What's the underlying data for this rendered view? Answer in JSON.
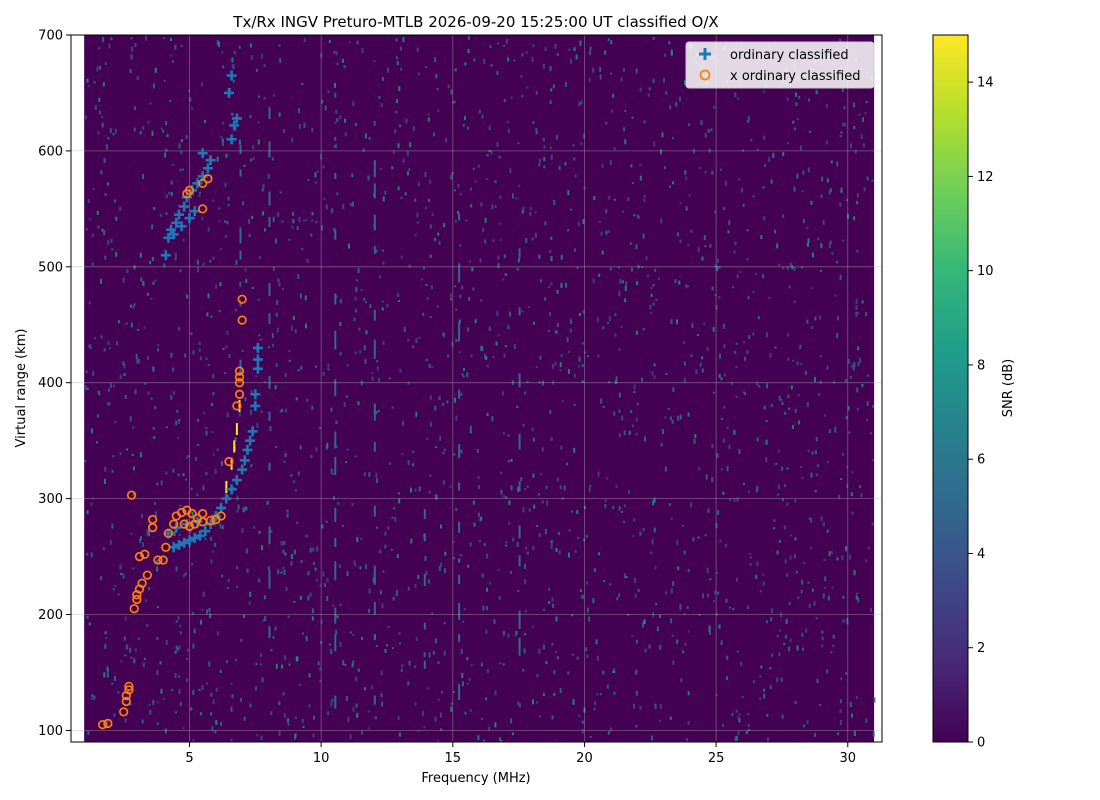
{
  "chart_data": {
    "type": "scatter",
    "title": "Tx/Rx INGV Preturo-MTLB 2026-09-20 15:25:00  UT classified O/X",
    "xlabel": "Frequency (MHz)",
    "ylabel": "Virtual range (km)",
    "xlim": [
      0.5,
      31.3
    ],
    "ylim": [
      90,
      700
    ],
    "x_ticks": [
      5,
      10,
      15,
      20,
      25,
      30
    ],
    "y_ticks": [
      100,
      200,
      300,
      400,
      500,
      600,
      700
    ],
    "grid": true,
    "legend_position": "top-right",
    "heatmap_background": {
      "x_range": [
        1.0,
        31.0
      ],
      "y_range": [
        90,
        700
      ],
      "description_colormap": "viridis",
      "base_value_db": 0
    },
    "colorbar": {
      "label": "SNR (dB)",
      "range": [
        0,
        15
      ],
      "ticks": [
        0,
        2,
        4,
        6,
        8,
        10,
        12,
        14
      ],
      "colors": [
        "#440154",
        "#482878",
        "#3e4989",
        "#31688e",
        "#26828e",
        "#1f9e89",
        "#35b779",
        "#6ece58",
        "#b5de2b",
        "#fde725"
      ]
    },
    "series": [
      {
        "name": "ordinary classified",
        "marker": "plus",
        "color": "#1f77b4",
        "points": [
          [
            4.4,
            258
          ],
          [
            4.6,
            260
          ],
          [
            4.8,
            262
          ],
          [
            5.0,
            264
          ],
          [
            5.2,
            266
          ],
          [
            5.4,
            268
          ],
          [
            5.6,
            272
          ],
          [
            5.8,
            278
          ],
          [
            6.0,
            285
          ],
          [
            6.2,
            292
          ],
          [
            6.4,
            300
          ],
          [
            6.6,
            308
          ],
          [
            6.8,
            316
          ],
          [
            7.0,
            325
          ],
          [
            7.1,
            333
          ],
          [
            7.2,
            342
          ],
          [
            7.3,
            350
          ],
          [
            7.4,
            358
          ],
          [
            7.5,
            380
          ],
          [
            7.5,
            390
          ],
          [
            7.6,
            412
          ],
          [
            7.6,
            420
          ],
          [
            7.6,
            430
          ],
          [
            4.2,
            270
          ],
          [
            4.5,
            275
          ],
          [
            4.9,
            278
          ],
          [
            5.3,
            280
          ],
          [
            4.1,
            510
          ],
          [
            4.2,
            525
          ],
          [
            4.3,
            532
          ],
          [
            4.5,
            538
          ],
          [
            4.6,
            545
          ],
          [
            4.8,
            552
          ],
          [
            4.9,
            560
          ],
          [
            5.1,
            566
          ],
          [
            5.3,
            572
          ],
          [
            5.5,
            578
          ],
          [
            5.7,
            585
          ],
          [
            5.8,
            592
          ],
          [
            4.4,
            528
          ],
          [
            4.7,
            535
          ],
          [
            5.0,
            542
          ],
          [
            5.2,
            548
          ],
          [
            5.5,
            598
          ],
          [
            6.6,
            610
          ],
          [
            6.7,
            622
          ],
          [
            6.8,
            628
          ],
          [
            6.5,
            650
          ],
          [
            6.6,
            665
          ]
        ]
      },
      {
        "name": "x ordinary classified",
        "marker": "circle",
        "color": "#ff7f0e",
        "points": [
          [
            1.7,
            105
          ],
          [
            1.9,
            106
          ],
          [
            2.5,
            116
          ],
          [
            2.6,
            125
          ],
          [
            2.6,
            130
          ],
          [
            2.7,
            135
          ],
          [
            2.7,
            138
          ],
          [
            2.9,
            205
          ],
          [
            3.0,
            213
          ],
          [
            3.0,
            217
          ],
          [
            3.1,
            222
          ],
          [
            3.2,
            227
          ],
          [
            3.4,
            234
          ],
          [
            3.1,
            250
          ],
          [
            3.3,
            252
          ],
          [
            3.8,
            247
          ],
          [
            4.0,
            247
          ],
          [
            4.1,
            258
          ],
          [
            3.6,
            275
          ],
          [
            3.6,
            282
          ],
          [
            2.8,
            303
          ],
          [
            4.2,
            270
          ],
          [
            4.4,
            278
          ],
          [
            4.5,
            285
          ],
          [
            4.7,
            288
          ],
          [
            4.9,
            290
          ],
          [
            5.1,
            287
          ],
          [
            5.3,
            283
          ],
          [
            5.5,
            280
          ],
          [
            5.8,
            281
          ],
          [
            6.0,
            282
          ],
          [
            6.2,
            285
          ],
          [
            5.5,
            287
          ],
          [
            4.8,
            278
          ],
          [
            5.0,
            276
          ],
          [
            5.2,
            278
          ],
          [
            6.5,
            332
          ],
          [
            6.8,
            380
          ],
          [
            6.9,
            390
          ],
          [
            6.9,
            400
          ],
          [
            6.9,
            405
          ],
          [
            6.9,
            410
          ],
          [
            7.0,
            454
          ],
          [
            7.0,
            472
          ],
          [
            4.9,
            563
          ],
          [
            5.0,
            566
          ],
          [
            5.5,
            550
          ],
          [
            5.5,
            572
          ],
          [
            5.7,
            576
          ]
        ]
      }
    ],
    "snr_trace": {
      "color": "#fde725",
      "points": [
        [
          6.4,
          310
        ],
        [
          6.6,
          330
        ],
        [
          6.7,
          345
        ],
        [
          6.8,
          360
        ],
        [
          6.9,
          380
        ]
      ]
    }
  }
}
